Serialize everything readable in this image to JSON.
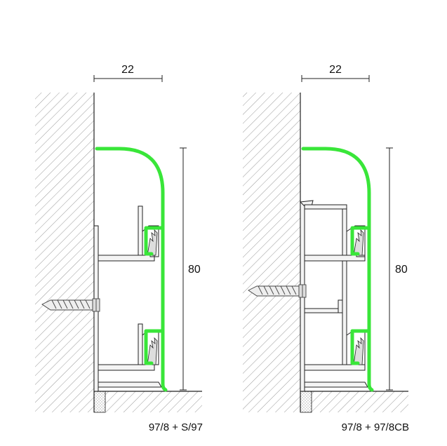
{
  "drawings": [
    {
      "caption": "97/8 + S/97",
      "width_dimension": "22",
      "height_dimension": "80"
    },
    {
      "caption": "97/8 + 97/8CB",
      "width_dimension": "22",
      "height_dimension": "80"
    }
  ],
  "colors": {
    "profile_green": "#39e639",
    "line": "#222222",
    "hatch": "#9a9a9a",
    "profile_fill": "#f4f4f4"
  }
}
